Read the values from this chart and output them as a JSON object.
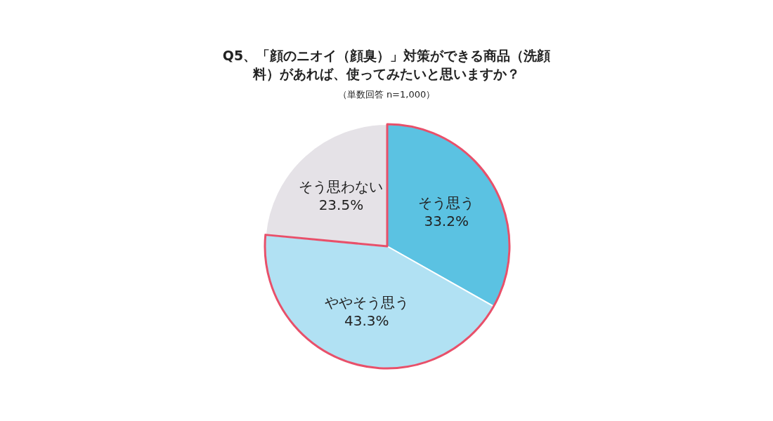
{
  "chart_data": {
    "type": "pie",
    "title": "Q5、「顔のニオイ（顔臭）」対策ができる商品（洗顔料）があれば、使ってみたいと思いますか？",
    "subtitle": "（単数回答 n=1,000）",
    "categories": [
      "そう思う",
      "ややそう思う",
      "そう思わない"
    ],
    "values": [
      33.2,
      43.3,
      23.5
    ],
    "colors": [
      "#5bc2e2",
      "#b1e1f3",
      "#e5e2e7"
    ],
    "value_labels": [
      "33.2%",
      "43.3%",
      "23.5%"
    ],
    "legend": false
  }
}
